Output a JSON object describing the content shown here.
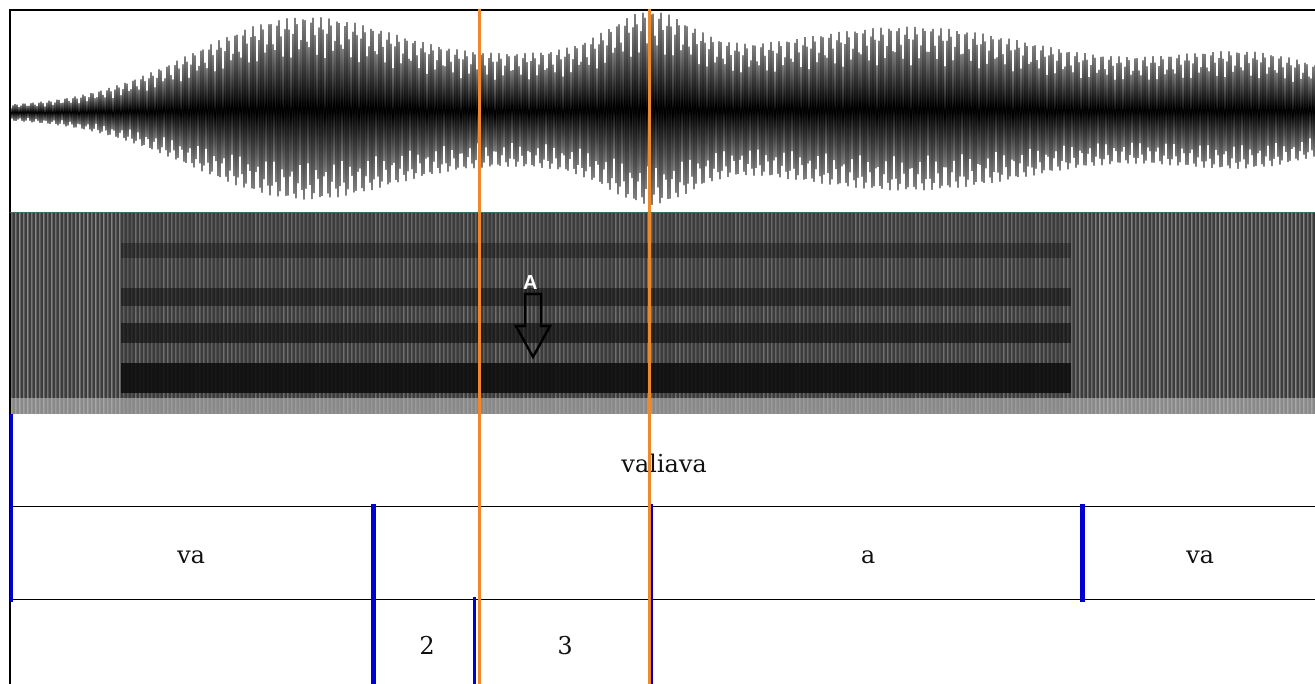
{
  "colors": {
    "cursor": "#f0882a",
    "boundary": "#0000d0",
    "waveform": "#000000",
    "spectrogram_background": "#1a1a1a",
    "tier_line": "#000000"
  },
  "annotation": {
    "marker_label": "A",
    "marker_icon": "down-arrow-icon"
  },
  "tiers": {
    "word": {
      "intervals": [
        {
          "label": "valiava"
        }
      ]
    },
    "syllable": {
      "intervals": [
        {
          "label": "va"
        },
        {
          "label": ""
        },
        {
          "label": "a"
        },
        {
          "label": "va"
        }
      ]
    },
    "tone": {
      "intervals": [
        {
          "label": ""
        },
        {
          "label": "2"
        },
        {
          "label": "3"
        },
        {
          "label": ""
        }
      ]
    }
  }
}
